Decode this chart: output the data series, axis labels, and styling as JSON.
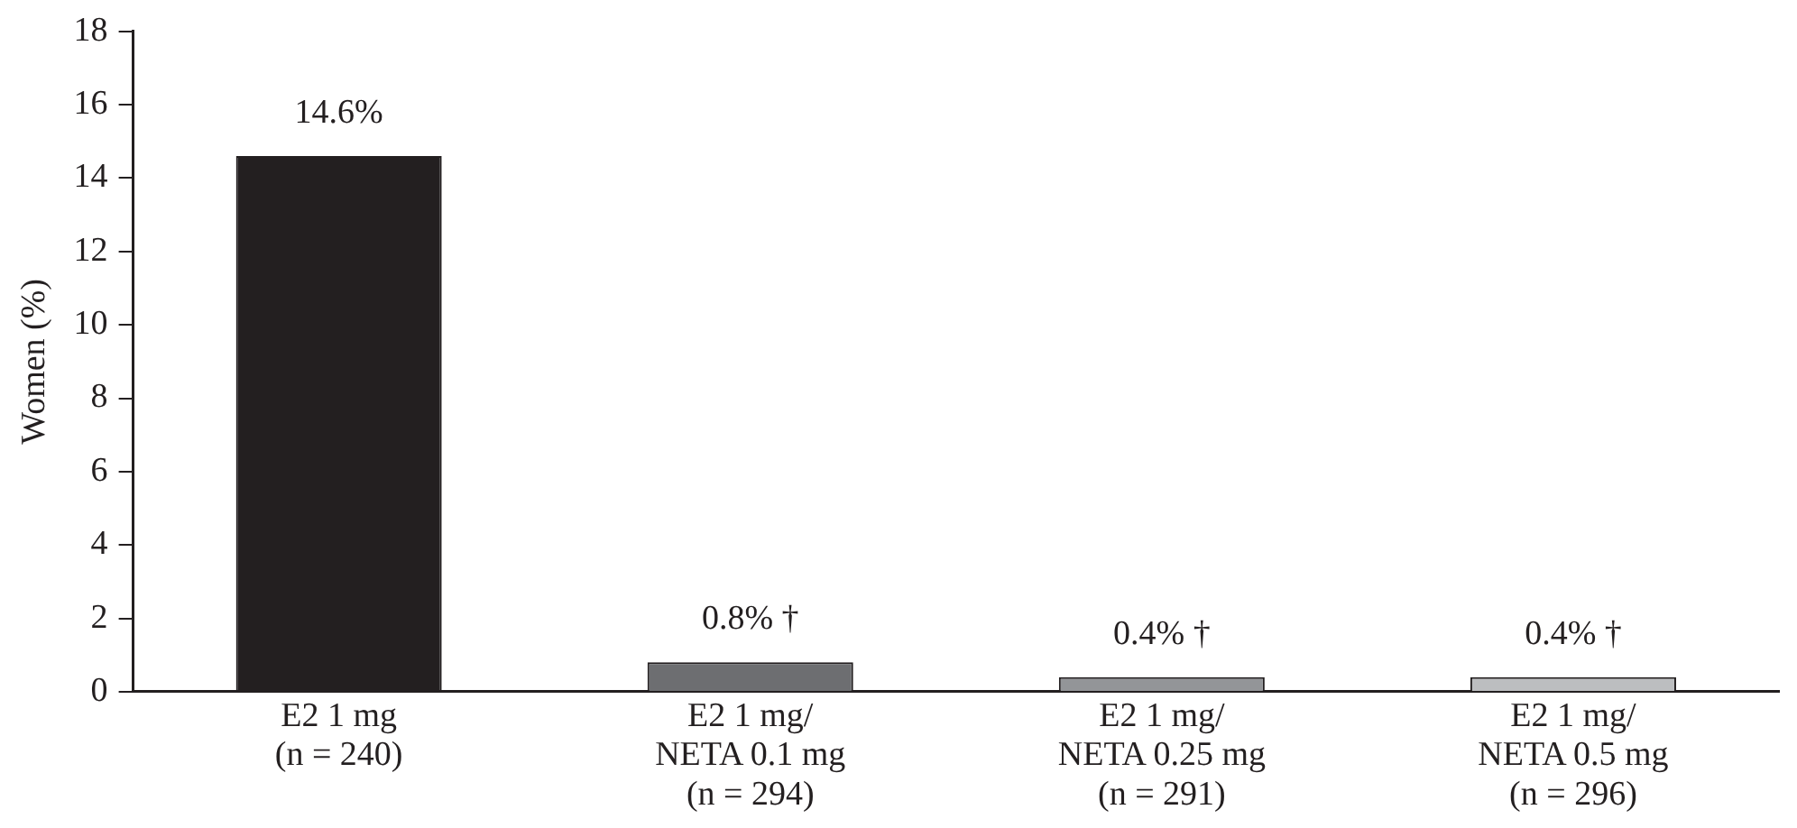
{
  "chart_data": {
    "type": "bar",
    "ylabel": "Women (%)",
    "categories": [
      "E2 1 mg\n(n = 240)",
      "E2 1 mg/\nNETA 0.1 mg\n(n = 294)",
      "E2 1 mg/\nNETA 0.25 mg\n(n = 291)",
      "E2 1 mg/\nNETA 0.5 mg\n(n = 296)"
    ],
    "values": [
      14.6,
      0.8,
      0.4,
      0.4
    ],
    "colors": [
      "#231f20",
      "#6d6e71",
      "#939598",
      "#bcbec0"
    ],
    "value_labels": [
      "14.6%",
      "0.8% †",
      "0.4% †",
      "0.4% †"
    ],
    "ylim": [
      0,
      18
    ],
    "yticks": [
      0,
      2,
      4,
      6,
      8,
      10,
      12,
      14,
      16,
      18
    ],
    "grid": false,
    "legend": false
  }
}
